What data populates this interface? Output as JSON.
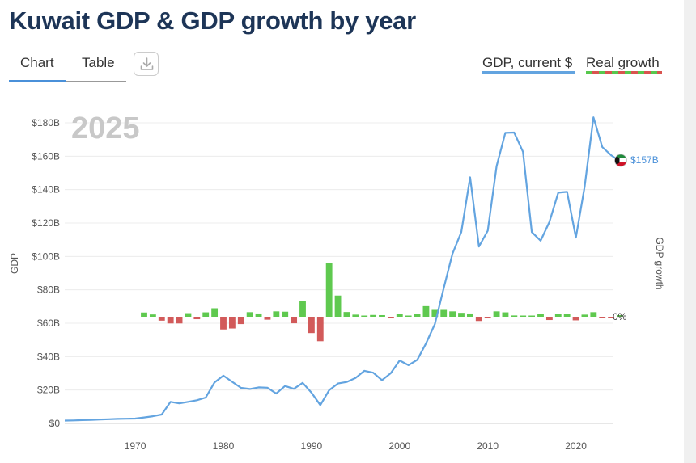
{
  "title": "Kuwait GDP & GDP growth by year",
  "tabs": {
    "chart": "Chart",
    "table": "Table"
  },
  "legend": {
    "gdp": "GDP, current $",
    "growth": "Real growth"
  },
  "colors": {
    "gdp_line": "#63a4e0",
    "growth_positive": "#5fc94f",
    "growth_negative": "#d25a5a",
    "title": "#1d3557",
    "tab_accent": "#4a90d9"
  },
  "icons": {
    "download": "download-icon",
    "flag": "kuwait-flag-icon"
  },
  "chart_data": {
    "type": "line",
    "current_year_label": "2025",
    "ylabel": "GDP",
    "y2label": "GDP growth",
    "ylim": [
      0,
      183
    ],
    "yticks": [
      0,
      20,
      40,
      60,
      80,
      100,
      120,
      140,
      160,
      180
    ],
    "ytick_labels": [
      "$0",
      "$20B",
      "$40B",
      "$60B",
      "$80B",
      "$100B",
      "$120B",
      "$140B",
      "$160B",
      "$180B"
    ],
    "xlim": [
      1962,
      2025
    ],
    "xticks": [
      1970,
      1980,
      1990,
      2000,
      2010,
      2020
    ],
    "end_label": "$157B",
    "growth_zero_label": "0%",
    "series": [
      {
        "name": "GDP, current $",
        "x": [
          1962,
          1963,
          1964,
          1965,
          1966,
          1967,
          1968,
          1969,
          1970,
          1971,
          1972,
          1973,
          1974,
          1975,
          1976,
          1977,
          1978,
          1979,
          1980,
          1981,
          1982,
          1983,
          1984,
          1985,
          1986,
          1987,
          1988,
          1989,
          1990,
          1991,
          1992,
          1993,
          1994,
          1995,
          1996,
          1997,
          1998,
          1999,
          2000,
          2001,
          2002,
          2003,
          2004,
          2005,
          2006,
          2007,
          2008,
          2009,
          2010,
          2011,
          2012,
          2013,
          2014,
          2015,
          2016,
          2017,
          2018,
          2019,
          2020,
          2021,
          2022,
          2023,
          2024,
          2025
        ],
        "values": [
          1.7,
          1.8,
          2.0,
          2.1,
          2.3,
          2.5,
          2.7,
          2.8,
          2.9,
          3.6,
          4.3,
          5.3,
          12.9,
          12.0,
          12.9,
          13.9,
          15.5,
          24.6,
          28.6,
          24.9,
          21.3,
          20.6,
          21.6,
          21.4,
          17.9,
          22.4,
          20.7,
          24.3,
          18.4,
          11.0,
          19.9,
          23.9,
          24.8,
          27.2,
          31.5,
          30.4,
          25.9,
          30.1,
          37.7,
          34.9,
          38.1,
          47.9,
          59.4,
          80.8,
          101.6,
          114.6,
          147.4,
          105.9,
          115.4,
          154.0,
          174.0,
          174.2,
          162.7,
          114.6,
          109.4,
          120.7,
          138.2,
          138.7,
          111.3,
          141.8,
          183.3,
          165.5,
          160.6,
          157.0
        ]
      },
      {
        "name": "Real growth",
        "x": [
          1971,
          1972,
          1973,
          1974,
          1975,
          1976,
          1977,
          1978,
          1979,
          1980,
          1981,
          1982,
          1983,
          1984,
          1985,
          1986,
          1987,
          1988,
          1989,
          1990,
          1991,
          1992,
          1993,
          1994,
          1995,
          1996,
          1997,
          1998,
          1999,
          2000,
          2001,
          2002,
          2003,
          2004,
          2005,
          2006,
          2007,
          2008,
          2009,
          2010,
          2011,
          2012,
          2013,
          2014,
          2015,
          2016,
          2017,
          2018,
          2019,
          2020,
          2021,
          2022,
          2023,
          2024,
          2025
        ],
        "values": [
          2.6,
          1.4,
          -2.4,
          -4.1,
          -4.1,
          2.2,
          -1.5,
          2.7,
          5.2,
          -7.8,
          -7.2,
          -4.5,
          2.8,
          2.0,
          -1.8,
          3.3,
          3.1,
          -4.0,
          9.9,
          -10.0,
          -15.0,
          33.0,
          13.0,
          2.9,
          1.3,
          0.6,
          1.1,
          1.0,
          -1.0,
          1.5,
          0.2,
          1.5,
          6.5,
          4.2,
          4.2,
          3.3,
          2.4,
          2.0,
          -2.6,
          -1.0,
          3.3,
          2.7,
          0.8,
          0.5,
          0.6,
          1.7,
          -2.0,
          1.5,
          1.5,
          -2.2,
          1.3,
          2.8,
          -0.5,
          -0.5,
          1.0
        ]
      }
    ]
  }
}
